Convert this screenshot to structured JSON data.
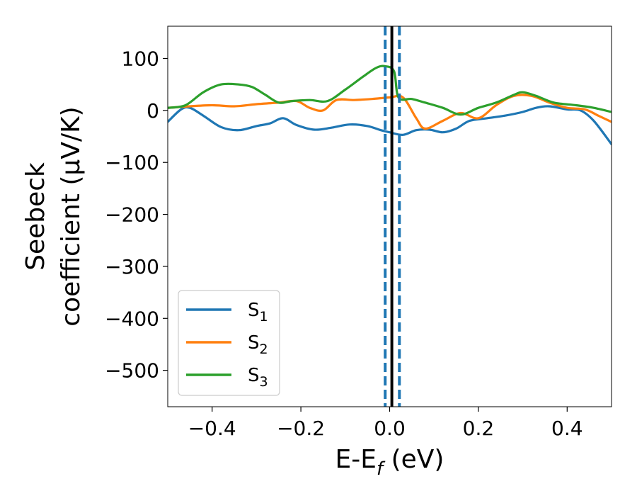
{
  "chart_data": {
    "type": "line",
    "xlabel": "E-E",
    "xlabel_sub": "f",
    "xlabel_unit": " (eV)",
    "ylabel_line1": "Seebeck",
    "ylabel_line2": "coefficient  (μV/K)",
    "xlim": [
      -0.5,
      0.5
    ],
    "ylim": [
      -570,
      162
    ],
    "xticks": [
      -0.4,
      -0.2,
      0.0,
      0.2,
      0.4
    ],
    "xtick_labels": [
      "−0.4",
      "−0.2",
      "0.0",
      "0.2",
      "0.4"
    ],
    "yticks": [
      100,
      0,
      -100,
      -200,
      -300,
      -400,
      -500
    ],
    "ytick_labels": [
      "100",
      "0",
      "−100",
      "−200",
      "−300",
      "−400",
      "−500"
    ],
    "grid": false,
    "legend_position": "lower-left",
    "vertical_lines": [
      {
        "x": 0.005,
        "style": "solid",
        "color": "#000000"
      },
      {
        "x": -0.01,
        "style": "dashed",
        "color": "#1f77b4"
      },
      {
        "x": 0.022,
        "style": "dashed",
        "color": "#1f77b4"
      }
    ],
    "series": [
      {
        "name": "S",
        "sub": "1",
        "color": "#1f77b4",
        "x": [
          -0.5,
          -0.47,
          -0.45,
          -0.42,
          -0.38,
          -0.34,
          -0.3,
          -0.27,
          -0.24,
          -0.21,
          -0.17,
          -0.13,
          -0.09,
          -0.05,
          -0.02,
          0.0,
          0.03,
          0.06,
          0.09,
          0.12,
          0.15,
          0.18,
          0.22,
          0.26,
          0.3,
          0.33,
          0.36,
          0.4,
          0.43,
          0.46,
          0.5
        ],
        "y": [
          -22,
          2,
          5,
          -10,
          -32,
          -38,
          -30,
          -25,
          -15,
          -28,
          -37,
          -33,
          -27,
          -30,
          -38,
          -42,
          -47,
          -38,
          -37,
          -42,
          -35,
          -20,
          -15,
          -10,
          -3,
          5,
          8,
          2,
          0,
          -20,
          -65
        ]
      },
      {
        "name": "S",
        "sub": "2",
        "color": "#ff7f0e",
        "x": [
          -0.5,
          -0.45,
          -0.4,
          -0.35,
          -0.3,
          -0.25,
          -0.21,
          -0.18,
          -0.15,
          -0.12,
          -0.08,
          -0.04,
          0.0,
          0.03,
          0.06,
          0.08,
          0.12,
          0.16,
          0.2,
          0.24,
          0.28,
          0.32,
          0.36,
          0.4,
          0.44,
          0.47,
          0.5
        ],
        "y": [
          5,
          8,
          10,
          8,
          12,
          15,
          18,
          5,
          0,
          20,
          20,
          22,
          25,
          25,
          -15,
          -35,
          -20,
          -5,
          -15,
          10,
          28,
          28,
          15,
          5,
          2,
          -10,
          -22
        ]
      },
      {
        "name": "S",
        "sub": "3",
        "color": "#2ca02c",
        "x": [
          -0.5,
          -0.46,
          -0.42,
          -0.38,
          -0.34,
          -0.31,
          -0.28,
          -0.25,
          -0.22,
          -0.18,
          -0.14,
          -0.1,
          -0.06,
          -0.03,
          -0.01,
          0.01,
          0.02,
          0.05,
          0.08,
          0.12,
          0.16,
          0.2,
          0.24,
          0.28,
          0.3,
          0.33,
          0.37,
          0.42,
          0.46,
          0.5
        ],
        "y": [
          5,
          10,
          35,
          50,
          50,
          45,
          30,
          15,
          18,
          20,
          18,
          40,
          65,
          82,
          85,
          75,
          25,
          22,
          15,
          5,
          -8,
          5,
          15,
          30,
          35,
          28,
          15,
          10,
          5,
          -3
        ]
      }
    ]
  }
}
